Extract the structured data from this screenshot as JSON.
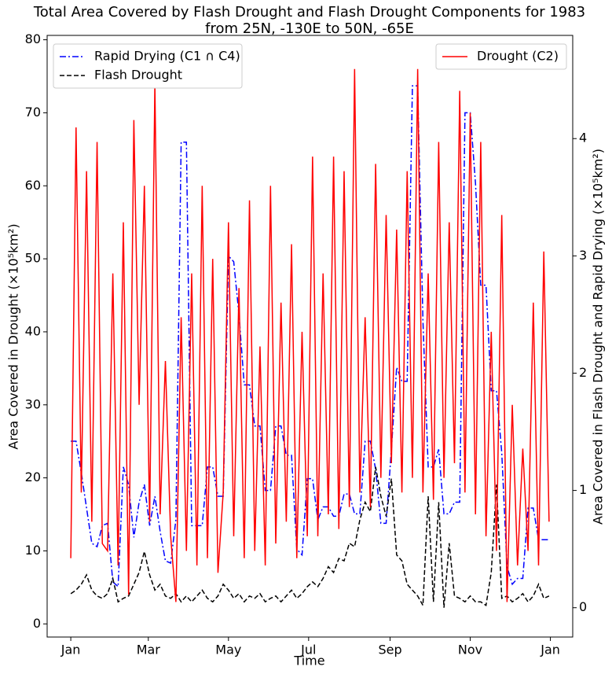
{
  "chart_data": {
    "type": "line",
    "title": "Total Area Covered by Flash Drought and Flash Drought Components for 1983",
    "subtitle": "from 25N, -130E to 50N, -65E",
    "xlabel": "Time",
    "ylabel": "Area Covered in Drought (×10⁵km²)",
    "y2label": "Area Covered in Flash Drought and Rapid Drying (×10⁵km²)",
    "x": [
      0,
      4,
      8,
      12,
      16,
      20,
      24,
      28,
      32,
      36,
      40,
      44,
      48,
      52,
      56,
      60,
      64,
      68,
      72,
      76,
      80,
      84,
      88,
      92,
      96,
      100,
      104,
      108,
      112,
      116,
      120,
      124,
      128,
      132,
      136,
      140,
      144,
      148,
      152,
      156,
      160,
      164,
      168,
      172,
      176,
      180,
      184,
      188,
      192,
      196,
      200,
      204,
      208,
      212,
      216,
      220,
      224,
      228,
      232,
      236,
      240,
      244,
      248,
      252,
      256,
      260,
      264,
      268,
      272,
      276,
      280,
      284,
      288,
      292,
      296,
      300,
      304,
      308,
      312,
      316,
      320,
      324,
      328,
      332,
      336,
      340,
      344,
      348,
      352,
      356,
      360,
      364
    ],
    "xlim": [
      -18,
      382
    ],
    "xticks": [
      {
        "value": 0,
        "label": "Jan"
      },
      {
        "value": 59,
        "label": "Mar"
      },
      {
        "value": 120,
        "label": "May"
      },
      {
        "value": 181,
        "label": "Jul"
      },
      {
        "value": 243,
        "label": "Sep"
      },
      {
        "value": 304,
        "label": "Nov"
      },
      {
        "value": 365,
        "label": "Jan"
      }
    ],
    "ylim": [
      -1.8,
      80.6
    ],
    "yticks": [
      0,
      10,
      20,
      30,
      40,
      50,
      60,
      70,
      80
    ],
    "y2lim": [
      -0.25,
      4.88
    ],
    "y2ticks": [
      0,
      1,
      2,
      3,
      4
    ],
    "legend": "upper right",
    "legend2": "upper left",
    "series": [
      {
        "name": "Drought (C2)",
        "color": "#ff0000",
        "linestyle": "solid",
        "axis": "y",
        "values": [
          9,
          68,
          18,
          62,
          14,
          66,
          11,
          10,
          48,
          8,
          55,
          4,
          69,
          30,
          60,
          14,
          74,
          15,
          36,
          12,
          3,
          42,
          10,
          48,
          8,
          60,
          9,
          50,
          7,
          18,
          55,
          12,
          46,
          9,
          58,
          10,
          38,
          8,
          60,
          11,
          44,
          14,
          52,
          9,
          40,
          12,
          64,
          12,
          48,
          15,
          64,
          13,
          62,
          16,
          76,
          18,
          42,
          16,
          63,
          20,
          56,
          22,
          54,
          18,
          62,
          20,
          76,
          18,
          48,
          17,
          66,
          20,
          55,
          22,
          73,
          18,
          70,
          15,
          66,
          12,
          40,
          10,
          56,
          3,
          30,
          8,
          24,
          10,
          44,
          8,
          51,
          14
        ]
      },
      {
        "name": "Rapid Drying (C1 ∩ C4)",
        "color": "#0000ff",
        "linestyle": "dashdot",
        "axis": "y2",
        "values": [
          1.42,
          1.42,
          1.15,
          0.85,
          0.55,
          0.52,
          0.7,
          0.72,
          0.22,
          0.18,
          1.2,
          1.05,
          0.6,
          0.9,
          1.05,
          0.7,
          0.95,
          0.65,
          0.4,
          0.38,
          0.75,
          3.97,
          3.97,
          0.7,
          0.7,
          0.7,
          1.2,
          1.2,
          0.95,
          0.95,
          3.0,
          2.95,
          2.5,
          1.9,
          1.9,
          1.55,
          1.55,
          1.0,
          1.0,
          1.55,
          1.55,
          1.3,
          1.3,
          0.5,
          0.45,
          1.1,
          1.1,
          0.75,
          0.86,
          0.86,
          0.78,
          0.78,
          0.97,
          0.97,
          0.8,
          0.8,
          1.42,
          1.42,
          1.18,
          0.72,
          0.72,
          1.35,
          2.05,
          1.93,
          1.93,
          4.45,
          4.45,
          2.45,
          1.2,
          1.2,
          1.35,
          0.8,
          0.8,
          0.9,
          0.9,
          4.22,
          4.22,
          3.62,
          2.75,
          2.75,
          1.85,
          1.85,
          1.32,
          0.35,
          0.2,
          0.25,
          0.25,
          0.85,
          0.85,
          0.58,
          0.58,
          0.58
        ]
      },
      {
        "name": "Flash Drought",
        "color": "#000000",
        "linestyle": "dashed",
        "axis": "y2",
        "values": [
          0.12,
          0.15,
          0.2,
          0.28,
          0.15,
          0.1,
          0.08,
          0.12,
          0.25,
          0.05,
          0.08,
          0.1,
          0.2,
          0.3,
          0.48,
          0.28,
          0.15,
          0.2,
          0.1,
          0.08,
          0.12,
          0.05,
          0.1,
          0.05,
          0.1,
          0.15,
          0.08,
          0.05,
          0.1,
          0.2,
          0.15,
          0.08,
          0.12,
          0.05,
          0.1,
          0.08,
          0.12,
          0.05,
          0.08,
          0.1,
          0.05,
          0.1,
          0.15,
          0.08,
          0.12,
          0.18,
          0.22,
          0.18,
          0.25,
          0.35,
          0.3,
          0.42,
          0.4,
          0.55,
          0.52,
          0.75,
          0.9,
          0.82,
          1.2,
          0.95,
          0.78,
          1.1,
          0.45,
          0.4,
          0.2,
          0.15,
          0.1,
          0.02,
          0.95,
          0.05,
          0.9,
          0.0,
          0.55,
          0.1,
          0.08,
          0.05,
          0.1,
          0.05,
          0.05,
          0.02,
          0.3,
          1.05,
          0.08,
          0.1,
          0.05,
          0.08,
          0.12,
          0.05,
          0.1,
          0.2,
          0.08,
          0.1
        ]
      }
    ]
  }
}
